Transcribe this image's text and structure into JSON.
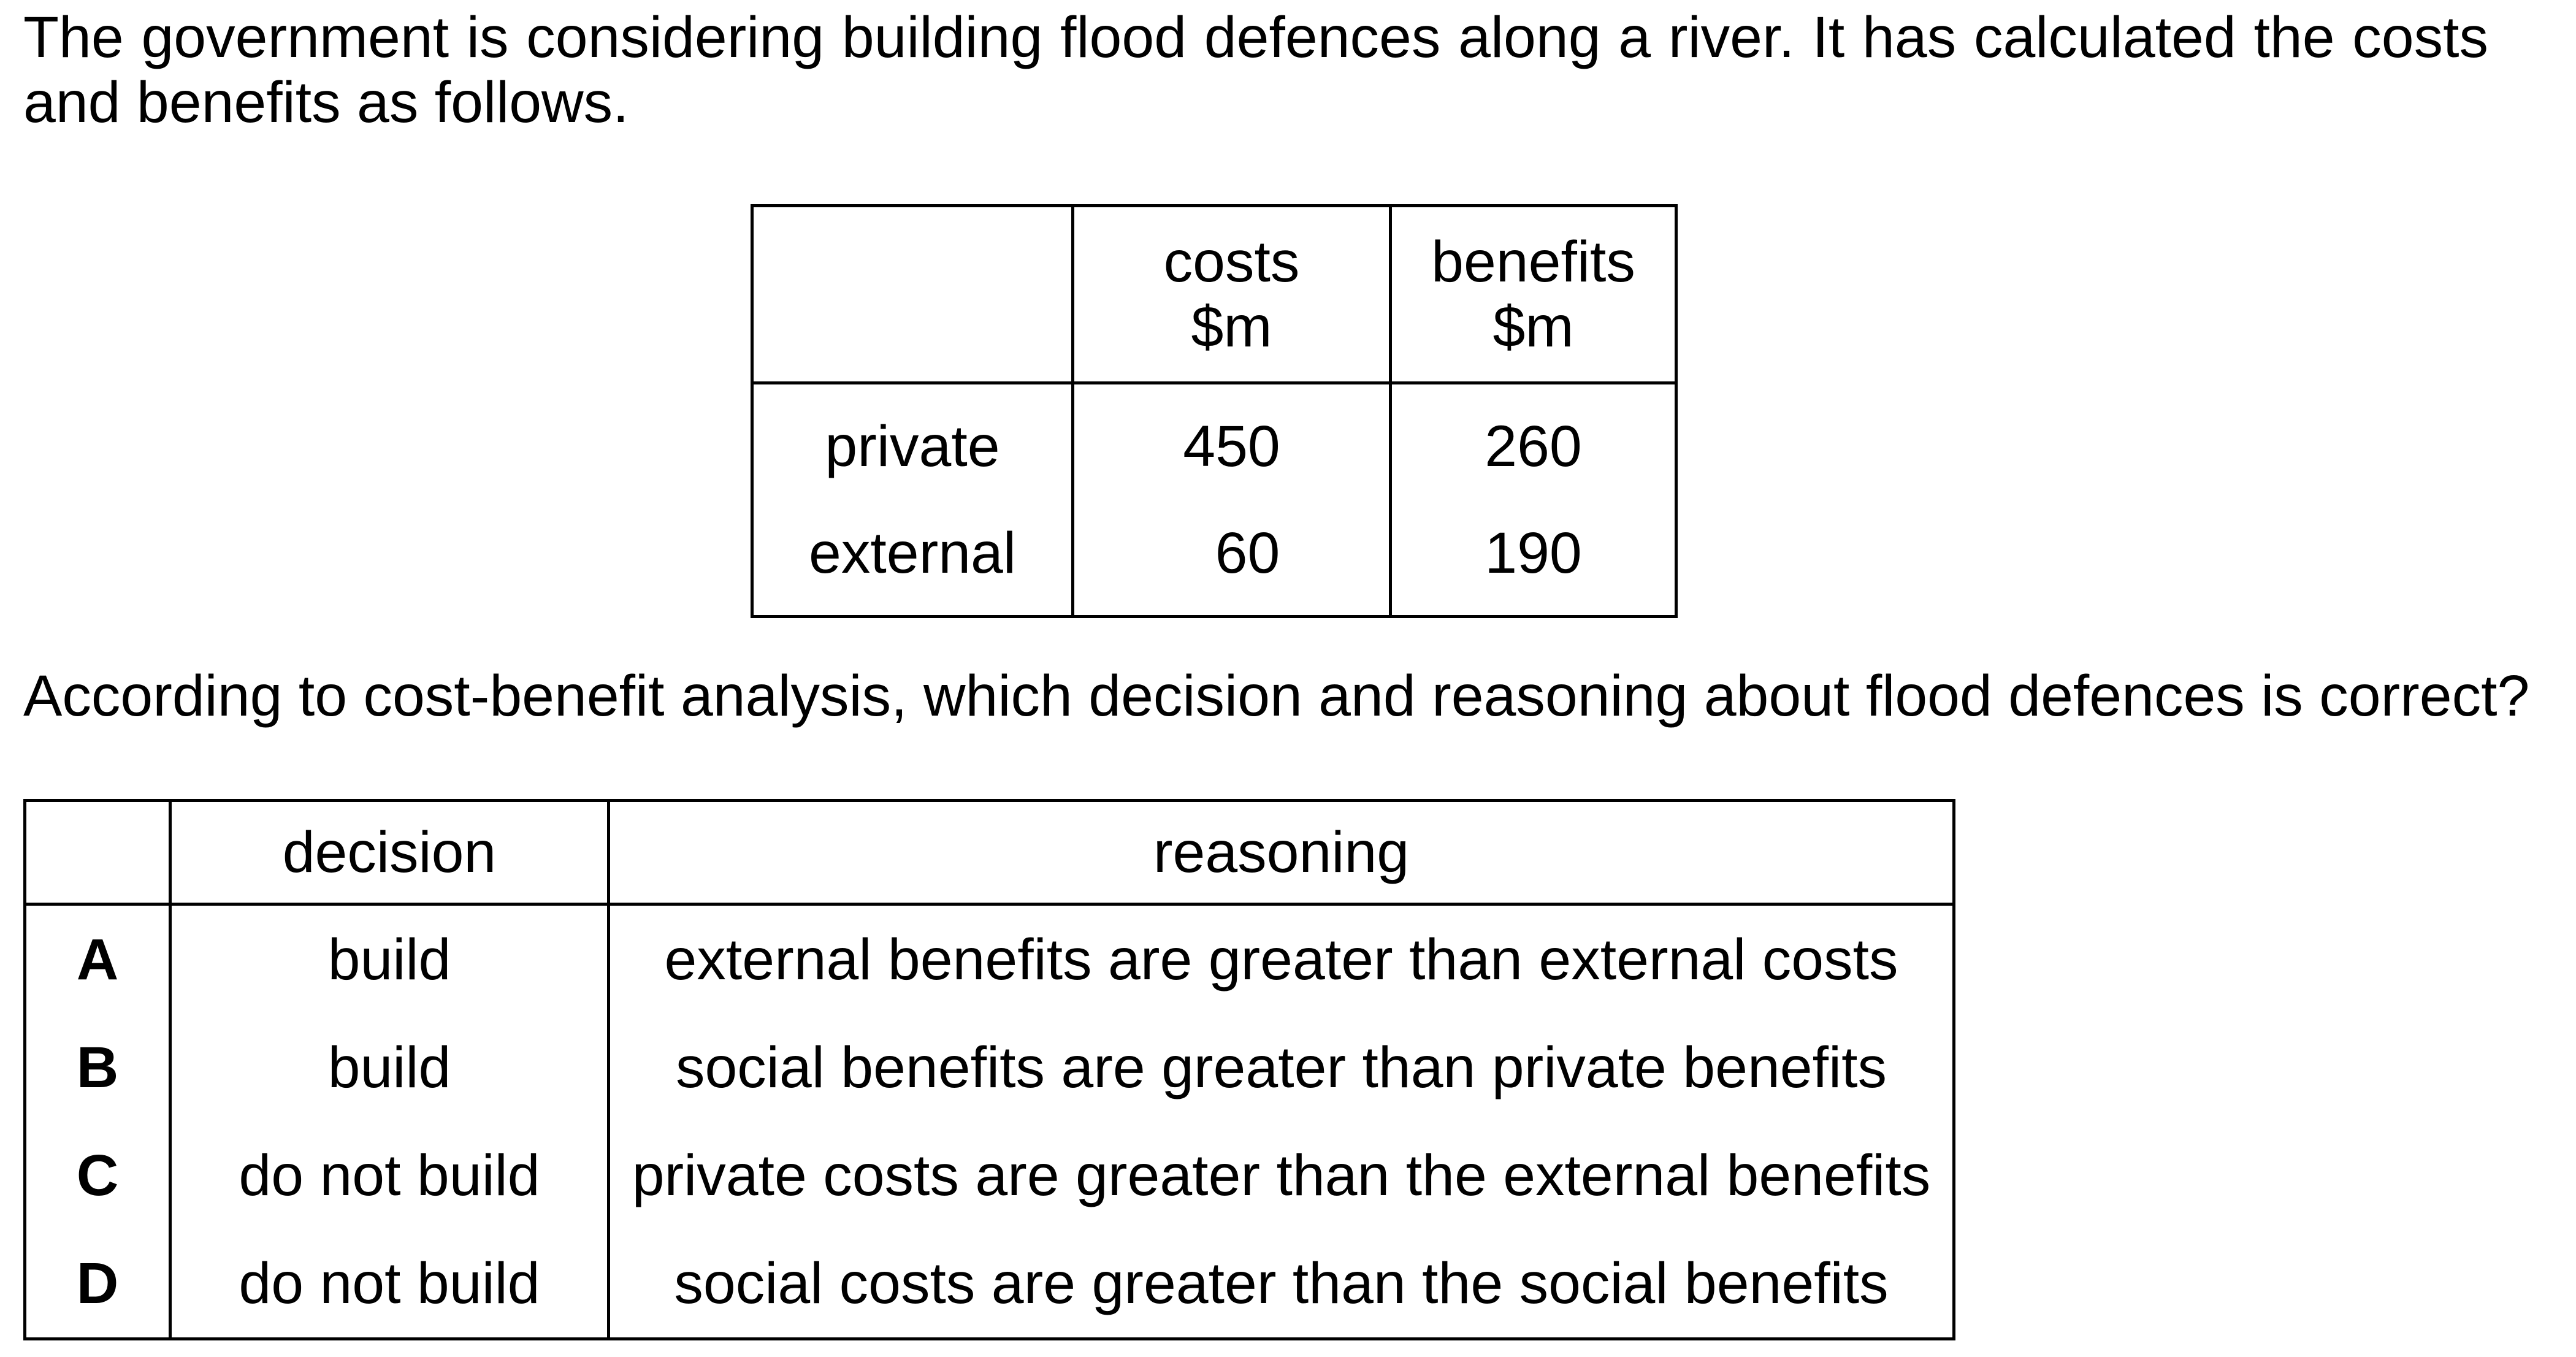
{
  "intro": "The government is considering building flood defences along a river. It has calculated the costs and benefits as follows.",
  "data_table": {
    "headers": [
      "",
      {
        "line1": "costs",
        "line2": "$m"
      },
      {
        "line1": "benefits",
        "line2": "$m"
      }
    ],
    "rows": [
      {
        "label": "private",
        "costs": "450",
        "benefits": "260"
      },
      {
        "label": "external",
        "costs": "60",
        "benefits": "190"
      }
    ]
  },
  "question": "According to cost-benefit analysis, which decision and reasoning about flood defences is correct?",
  "options_table": {
    "headers": {
      "decision": "decision",
      "reasoning": "reasoning"
    },
    "options": [
      {
        "letter": "A",
        "decision": "build",
        "reasoning": "external benefits are greater than external costs"
      },
      {
        "letter": "B",
        "decision": "build",
        "reasoning": "social benefits are greater than private benefits"
      },
      {
        "letter": "C",
        "decision": "do not build",
        "reasoning": "private costs are greater than the external benefits"
      },
      {
        "letter": "D",
        "decision": "do not build",
        "reasoning": "social costs are greater than the social benefits"
      }
    ]
  }
}
